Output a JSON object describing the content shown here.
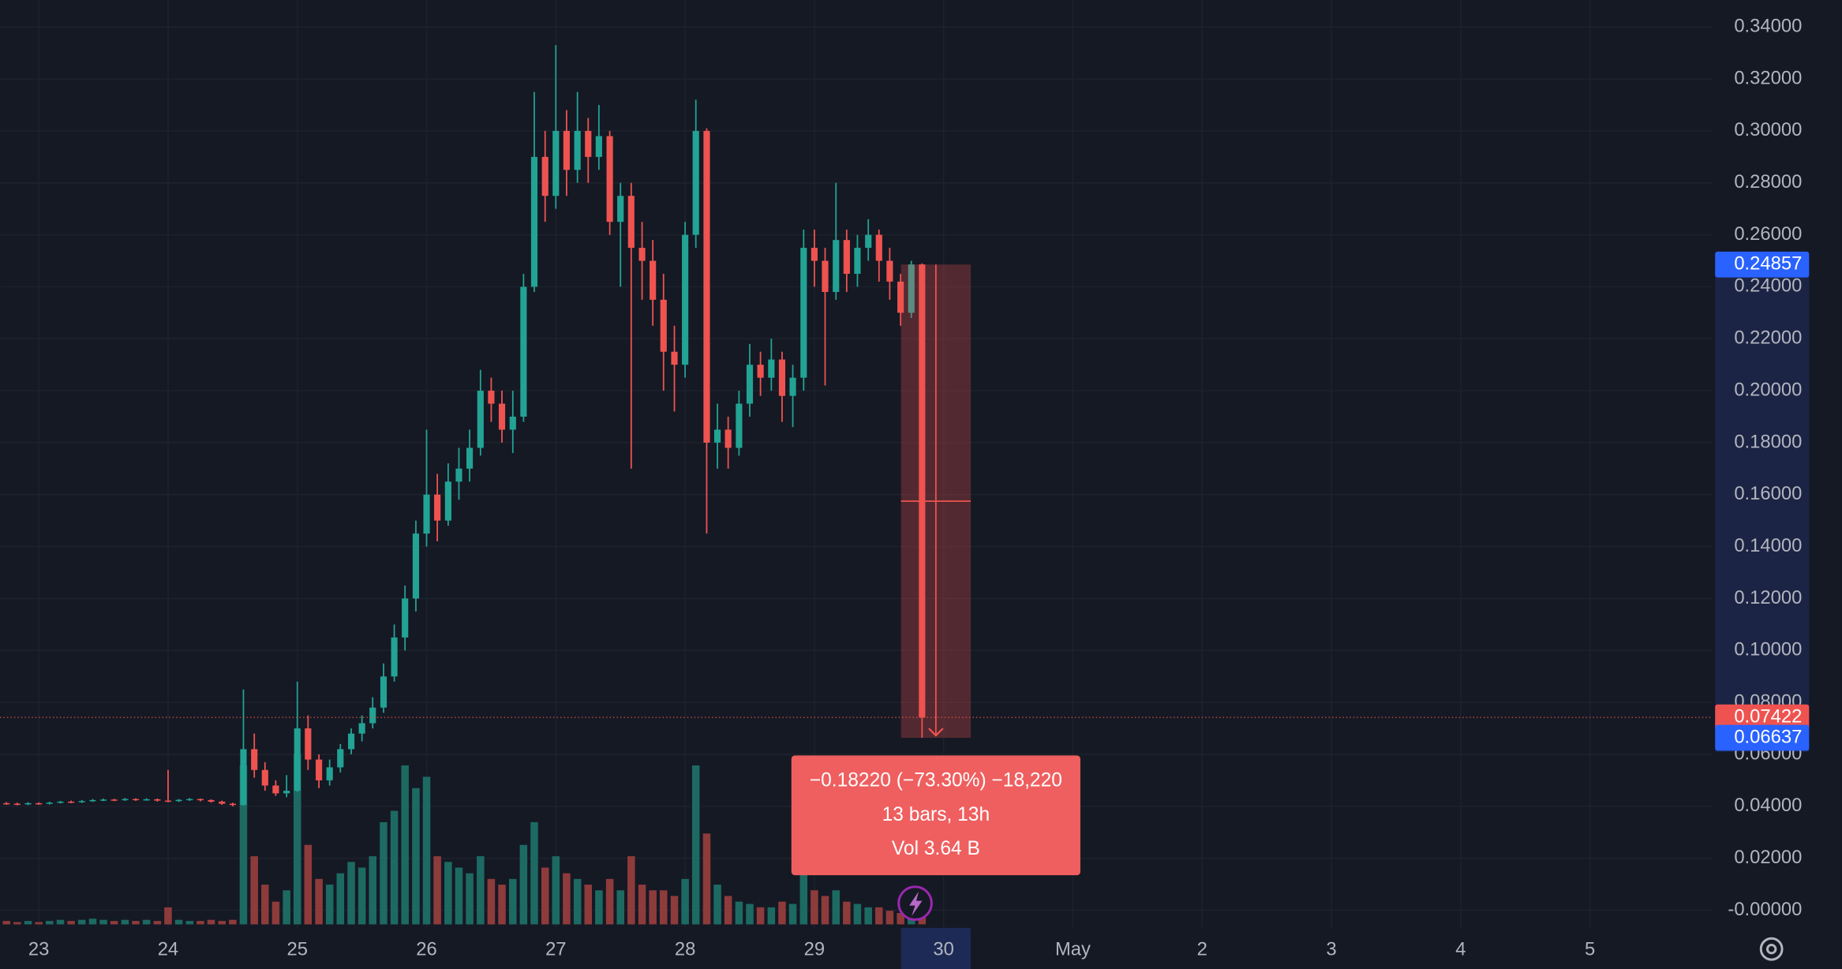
{
  "chart_data": {
    "type": "candlestick",
    "xlim": [
      22.7,
      35.95
    ],
    "xticks": [
      23,
      24,
      25,
      26,
      27,
      28,
      29,
      30,
      {
        "value": 31,
        "label": "May"
      },
      {
        "value": 32,
        "label": "2"
      },
      {
        "value": 33,
        "label": "3"
      },
      {
        "value": 34,
        "label": "4"
      },
      {
        "value": 35,
        "label": "5"
      }
    ],
    "ylim": [
      -0.0068,
      0.3504
    ],
    "yticks": [
      {
        "value": 0,
        "label": "-0.00000"
      },
      {
        "value": 0.02,
        "label": "0.02000"
      },
      {
        "value": 0.04,
        "label": "0.04000"
      },
      {
        "value": 0.06,
        "label": "0.06000"
      },
      {
        "value": 0.08,
        "label": "0.08000"
      },
      {
        "value": 0.1,
        "label": "0.10000"
      },
      {
        "value": 0.12,
        "label": "0.12000"
      },
      {
        "value": 0.14,
        "label": "0.14000"
      },
      {
        "value": 0.16,
        "label": "0.16000"
      },
      {
        "value": 0.18,
        "label": "0.18000"
      },
      {
        "value": 0.2,
        "label": "0.20000"
      },
      {
        "value": 0.22,
        "label": "0.22000"
      },
      {
        "value": 0.24,
        "label": "0.24000"
      },
      {
        "value": 0.26,
        "label": "0.26000"
      },
      {
        "value": 0.28,
        "label": "0.28000"
      },
      {
        "value": 0.3,
        "label": "0.30000"
      },
      {
        "value": 0.32,
        "label": "0.32000"
      },
      {
        "value": 0.34,
        "label": "0.34000"
      }
    ],
    "grid": true,
    "up_color": "#22a394",
    "down_color": "#ef5350",
    "volume_up_color": "#1d6a63",
    "volume_down_color": "#8e3b3b",
    "x": [
      22.75,
      22.833,
      22.917,
      23,
      23.083,
      23.167,
      23.25,
      23.333,
      23.417,
      23.5,
      23.583,
      23.667,
      23.75,
      23.833,
      23.917,
      24,
      24.083,
      24.167,
      24.25,
      24.333,
      24.417,
      24.5,
      24.583,
      24.667,
      24.75,
      24.833,
      24.917,
      25,
      25.083,
      25.167,
      25.25,
      25.333,
      25.417,
      25.5,
      25.583,
      25.667,
      25.75,
      25.833,
      25.917,
      26,
      26.083,
      26.167,
      26.25,
      26.333,
      26.417,
      26.5,
      26.583,
      26.667,
      26.75,
      26.833,
      26.917,
      27,
      27.083,
      27.167,
      27.25,
      27.333,
      27.417,
      27.5,
      27.583,
      27.667,
      27.75,
      27.833,
      27.917,
      28,
      28.083,
      28.167,
      28.25,
      28.333,
      28.417,
      28.5,
      28.583,
      28.667,
      28.75,
      28.833,
      28.917,
      29,
      29.083,
      29.167,
      29.25,
      29.333,
      29.417,
      29.5,
      29.583,
      29.667,
      29.75,
      29.833
    ],
    "ohlc": [
      [
        0.0412,
        0.0416,
        0.0406,
        0.041
      ],
      [
        0.041,
        0.0414,
        0.0404,
        0.0408
      ],
      [
        0.0408,
        0.0416,
        0.0405,
        0.0412
      ],
      [
        0.0412,
        0.0415,
        0.0406,
        0.041
      ],
      [
        0.041,
        0.0418,
        0.0407,
        0.0414
      ],
      [
        0.0414,
        0.0421,
        0.0411,
        0.0418
      ],
      [
        0.0418,
        0.0422,
        0.0412,
        0.0416
      ],
      [
        0.0416,
        0.0424,
        0.0413,
        0.042
      ],
      [
        0.042,
        0.0428,
        0.0417,
        0.0424
      ],
      [
        0.0424,
        0.043,
        0.042,
        0.0426
      ],
      [
        0.0426,
        0.0429,
        0.042,
        0.0424
      ],
      [
        0.0424,
        0.0432,
        0.0421,
        0.0428
      ],
      [
        0.0428,
        0.0431,
        0.0421,
        0.0425
      ],
      [
        0.0425,
        0.0431,
        0.0422,
        0.0427
      ],
      [
        0.0427,
        0.043,
        0.0418,
        0.0422
      ],
      [
        0.0422,
        0.054,
        0.0416,
        0.042
      ],
      [
        0.042,
        0.0428,
        0.0417,
        0.0425
      ],
      [
        0.0425,
        0.0432,
        0.0421,
        0.0428
      ],
      [
        0.0428,
        0.043,
        0.0419,
        0.0424
      ],
      [
        0.0424,
        0.0427,
        0.0414,
        0.0418
      ],
      [
        0.0418,
        0.0422,
        0.0406,
        0.041
      ],
      [
        0.041,
        0.0414,
        0.04,
        0.0405
      ],
      [
        0.0405,
        0.085,
        0.0402,
        0.062
      ],
      [
        0.062,
        0.068,
        0.051,
        0.054
      ],
      [
        0.054,
        0.057,
        0.046,
        0.048
      ],
      [
        0.048,
        0.05,
        0.044,
        0.045
      ],
      [
        0.045,
        0.052,
        0.0435,
        0.046
      ],
      [
        0.046,
        0.088,
        0.0455,
        0.07
      ],
      [
        0.07,
        0.075,
        0.054,
        0.058
      ],
      [
        0.058,
        0.06,
        0.047,
        0.05
      ],
      [
        0.05,
        0.058,
        0.048,
        0.055
      ],
      [
        0.055,
        0.064,
        0.053,
        0.062
      ],
      [
        0.062,
        0.07,
        0.06,
        0.068
      ],
      [
        0.068,
        0.075,
        0.065,
        0.072
      ],
      [
        0.072,
        0.082,
        0.07,
        0.078
      ],
      [
        0.078,
        0.095,
        0.076,
        0.09
      ],
      [
        0.09,
        0.11,
        0.088,
        0.105
      ],
      [
        0.105,
        0.125,
        0.1,
        0.12
      ],
      [
        0.12,
        0.15,
        0.115,
        0.145
      ],
      [
        0.145,
        0.185,
        0.14,
        0.16
      ],
      [
        0.16,
        0.168,
        0.142,
        0.15
      ],
      [
        0.15,
        0.172,
        0.148,
        0.165
      ],
      [
        0.165,
        0.178,
        0.158,
        0.17
      ],
      [
        0.17,
        0.185,
        0.165,
        0.178
      ],
      [
        0.178,
        0.208,
        0.175,
        0.2
      ],
      [
        0.2,
        0.205,
        0.188,
        0.195
      ],
      [
        0.195,
        0.2,
        0.18,
        0.185
      ],
      [
        0.185,
        0.2,
        0.176,
        0.19
      ],
      [
        0.19,
        0.245,
        0.188,
        0.24
      ],
      [
        0.24,
        0.315,
        0.238,
        0.29
      ],
      [
        0.29,
        0.3,
        0.265,
        0.275
      ],
      [
        0.275,
        0.333,
        0.27,
        0.3
      ],
      [
        0.3,
        0.308,
        0.275,
        0.285
      ],
      [
        0.285,
        0.315,
        0.28,
        0.3
      ],
      [
        0.3,
        0.305,
        0.28,
        0.29
      ],
      [
        0.29,
        0.31,
        0.285,
        0.298
      ],
      [
        0.298,
        0.3,
        0.26,
        0.265
      ],
      [
        0.265,
        0.28,
        0.24,
        0.275
      ],
      [
        0.275,
        0.28,
        0.17,
        0.255
      ],
      [
        0.255,
        0.265,
        0.235,
        0.25
      ],
      [
        0.25,
        0.258,
        0.225,
        0.235
      ],
      [
        0.235,
        0.245,
        0.2,
        0.215
      ],
      [
        0.215,
        0.225,
        0.192,
        0.21
      ],
      [
        0.21,
        0.265,
        0.205,
        0.26
      ],
      [
        0.26,
        0.312,
        0.255,
        0.3
      ],
      [
        0.3,
        0.301,
        0.145,
        0.18
      ],
      [
        0.18,
        0.195,
        0.17,
        0.185
      ],
      [
        0.185,
        0.19,
        0.17,
        0.178
      ],
      [
        0.178,
        0.2,
        0.175,
        0.195
      ],
      [
        0.195,
        0.218,
        0.19,
        0.21
      ],
      [
        0.21,
        0.215,
        0.198,
        0.205
      ],
      [
        0.205,
        0.22,
        0.2,
        0.212
      ],
      [
        0.212,
        0.215,
        0.188,
        0.198
      ],
      [
        0.198,
        0.21,
        0.186,
        0.205
      ],
      [
        0.205,
        0.262,
        0.2,
        0.255
      ],
      [
        0.255,
        0.262,
        0.24,
        0.25
      ],
      [
        0.25,
        0.255,
        0.202,
        0.238
      ],
      [
        0.238,
        0.28,
        0.235,
        0.258
      ],
      [
        0.258,
        0.262,
        0.238,
        0.245
      ],
      [
        0.245,
        0.26,
        0.24,
        0.255
      ],
      [
        0.255,
        0.266,
        0.25,
        0.26
      ],
      [
        0.26,
        0.262,
        0.242,
        0.25
      ],
      [
        0.25,
        0.255,
        0.235,
        0.242
      ],
      [
        0.242,
        0.245,
        0.225,
        0.23
      ],
      [
        0.23,
        0.25,
        0.228,
        0.2486
      ],
      [
        0.2486,
        0.249,
        0.0664,
        0.0742
      ]
    ],
    "volume": [
      3,
      2,
      3,
      2,
      3,
      4,
      3,
      4,
      5,
      4,
      3,
      4,
      3,
      4,
      3,
      15,
      4,
      3,
      3,
      4,
      3,
      4,
      140,
      60,
      35,
      20,
      30,
      150,
      70,
      40,
      35,
      45,
      55,
      50,
      60,
      90,
      100,
      140,
      120,
      130,
      60,
      55,
      50,
      45,
      60,
      40,
      35,
      40,
      70,
      90,
      50,
      60,
      45,
      40,
      35,
      30,
      40,
      30,
      60,
      35,
      30,
      30,
      25,
      40,
      140,
      80,
      35,
      25,
      20,
      18,
      15,
      15,
      20,
      18,
      45,
      30,
      25,
      30,
      20,
      18,
      15,
      15,
      12,
      10,
      12,
      30
    ],
    "price_labels": [
      {
        "value": 0.24857,
        "label": "0.24857",
        "color": "#2962ff"
      },
      {
        "value": 0.07422,
        "label": "0.07422",
        "color": "#ef5350"
      },
      {
        "value": 0.06637,
        "label": "0.06637",
        "color": "#2962ff"
      }
    ],
    "last_price_line": 0.07422,
    "measure": {
      "x": [
        29.67,
        30.21
      ],
      "y": [
        0.24857,
        0.06637
      ],
      "lines": [
        "−0.18220 (−73.30%) −18,220",
        "13 bars, 13h",
        "Vol 3.64 B"
      ]
    }
  }
}
